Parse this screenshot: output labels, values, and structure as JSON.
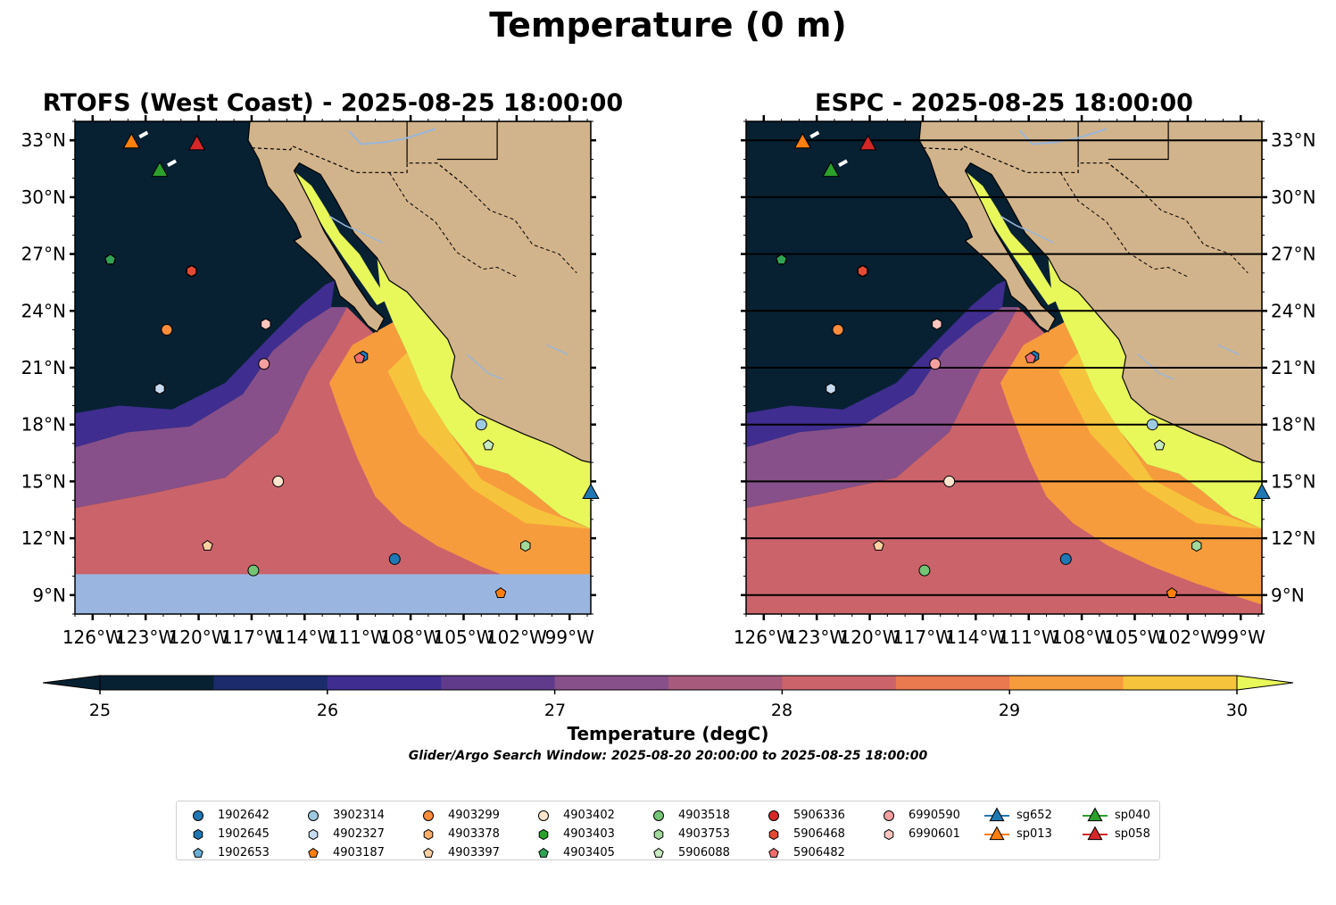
{
  "figure": {
    "title": "Temperature (0 m)",
    "panels": [
      {
        "title": "RTOFS (West Coast) - 2025-08-25 18:00:00"
      },
      {
        "title": "ESPC - 2025-08-25 18:00:00"
      }
    ],
    "lat_labels": [
      "33°N",
      "30°N",
      "27°N",
      "24°N",
      "21°N",
      "18°N",
      "15°N",
      "12°N",
      "9°N"
    ],
    "lon_labels": [
      "126°W",
      "123°W",
      "120°W",
      "117°W",
      "114°W",
      "111°W",
      "108°W",
      "105°W",
      "102°W",
      "99°W"
    ],
    "colorbar": {
      "label": "Temperature (degC)",
      "ticks": [
        "25",
        "26",
        "27",
        "28",
        "29",
        "30"
      ],
      "colors": [
        "#072133",
        "#1b2b6b",
        "#3f2d8f",
        "#603b8c",
        "#87508a",
        "#a85a7c",
        "#cb636a",
        "#e9794f",
        "#f79c3c",
        "#f6c43c",
        "#e8f75a"
      ]
    },
    "search_window": "Glider/Argo Search Window: 2025-08-20 20:00:00 to 2025-08-25 18:00:00",
    "colors": {
      "ocean_deep": "#072133",
      "land": "#d2b48c",
      "nodata": "#9ab6e0",
      "river": "#9ab6d8"
    }
  },
  "legend": {
    "columns": [
      [
        {
          "label": "1902642",
          "shape": "circle",
          "color": "#1f77b4"
        },
        {
          "label": "1902645",
          "shape": "hexagon",
          "color": "#1f77b4"
        },
        {
          "label": "1902653",
          "shape": "pentagon",
          "color": "#6baed6"
        }
      ],
      [
        {
          "label": "3902314",
          "shape": "circle",
          "color": "#9ecae1"
        },
        {
          "label": "4902327",
          "shape": "hexagon",
          "color": "#c6dbef"
        },
        {
          "label": "4903187",
          "shape": "pentagon",
          "color": "#ff7f0e"
        }
      ],
      [
        {
          "label": "4903299",
          "shape": "circle",
          "color": "#fd8d3c"
        },
        {
          "label": "4903378",
          "shape": "hexagon",
          "color": "#fdae6b"
        },
        {
          "label": "4903397",
          "shape": "pentagon",
          "color": "#fdd0a2"
        }
      ],
      [
        {
          "label": "4903402",
          "shape": "circle",
          "color": "#fee6ce"
        },
        {
          "label": "4903403",
          "shape": "hexagon",
          "color": "#2ca02c"
        },
        {
          "label": "4903405",
          "shape": "pentagon",
          "color": "#31a354"
        }
      ],
      [
        {
          "label": "4903518",
          "shape": "circle",
          "color": "#74c476"
        },
        {
          "label": "4903753",
          "shape": "hexagon",
          "color": "#a1d99b"
        },
        {
          "label": "5906088",
          "shape": "pentagon",
          "color": "#c7e9c0"
        }
      ],
      [
        {
          "label": "5906336",
          "shape": "circle",
          "color": "#d62728"
        },
        {
          "label": "5906468",
          "shape": "hexagon",
          "color": "#e34a33"
        },
        {
          "label": "5906482",
          "shape": "pentagon",
          "color": "#f46d6d"
        }
      ],
      [
        {
          "label": "6990590",
          "shape": "circle",
          "color": "#f4a0a0"
        },
        {
          "label": "6990601",
          "shape": "hexagon",
          "color": "#fcc5c0"
        }
      ],
      [
        {
          "label": "sg652",
          "shape": "triangle",
          "color": "#1f77b4"
        },
        {
          "label": "sp013",
          "shape": "triangle",
          "color": "#ff7f0e"
        }
      ],
      [
        {
          "label": "sp040",
          "shape": "triangle",
          "color": "#2ca02c"
        },
        {
          "label": "sp058",
          "shape": "triangle",
          "color": "#d62728"
        }
      ]
    ]
  },
  "observations": [
    {
      "id": "1902642",
      "lon": -108.9,
      "lat": 10.9
    },
    {
      "id": "1902645",
      "lon": -110.7,
      "lat": 21.6
    },
    {
      "id": "1902653",
      "lon": -122.2,
      "lat": 19.9
    },
    {
      "id": "3902314",
      "lon": -104.0,
      "lat": 18.0
    },
    {
      "id": "4902327",
      "lon": -122.2,
      "lat": 19.9
    },
    {
      "id": "4903187",
      "lon": -102.9,
      "lat": 9.1
    },
    {
      "id": "4903299",
      "lon": -121.8,
      "lat": 23.0
    },
    {
      "id": "4903378",
      "lon": -115.5,
      "lat": 15.0
    },
    {
      "id": "4903397",
      "lon": -119.5,
      "lat": 11.6
    },
    {
      "id": "4903402",
      "lon": -115.5,
      "lat": 15.0
    },
    {
      "id": "4903403",
      "lon": -125.0,
      "lat": 26.7
    },
    {
      "id": "4903405",
      "lon": -125.0,
      "lat": 26.7
    },
    {
      "id": "4903518",
      "lon": -116.9,
      "lat": 10.3
    },
    {
      "id": "4903753",
      "lon": -101.5,
      "lat": 11.6
    },
    {
      "id": "5906088",
      "lon": -103.6,
      "lat": 16.9
    },
    {
      "id": "5906336",
      "lon": -120.4,
      "lat": 26.1
    },
    {
      "id": "5906468",
      "lon": -120.4,
      "lat": 26.1
    },
    {
      "id": "5906482",
      "lon": -110.9,
      "lat": 21.5
    },
    {
      "id": "6990590",
      "lon": -116.3,
      "lat": 21.2
    },
    {
      "id": "6990601",
      "lon": -116.2,
      "lat": 23.3
    },
    {
      "id": "sg652",
      "lon": -97.8,
      "lat": 14.4
    },
    {
      "id": "sp013",
      "lon": -123.8,
      "lat": 32.9
    },
    {
      "id": "sp040",
      "lon": -122.2,
      "lat": 31.4
    },
    {
      "id": "sp058",
      "lon": -120.1,
      "lat": 32.8
    }
  ]
}
